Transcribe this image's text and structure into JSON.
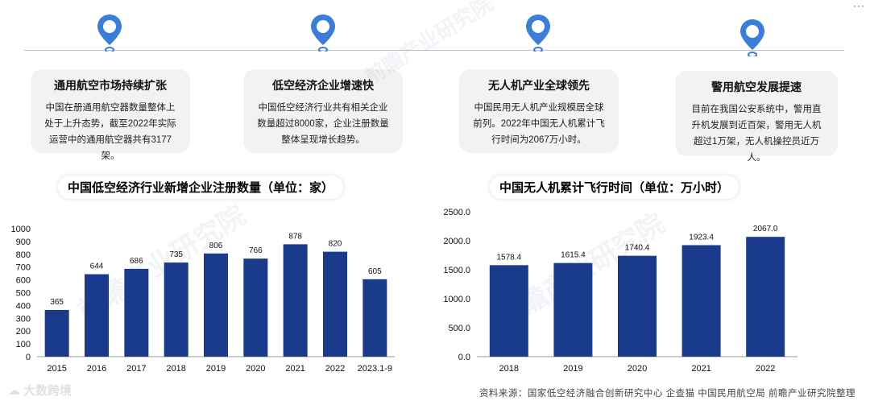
{
  "cards": [
    {
      "title": "通用航空市场持续扩张",
      "lines": [
        "中国在册通用航空器数量整体上",
        "处于上升态势，截至2022年实际",
        "运营中的通用航空器共有3177架。"
      ]
    },
    {
      "title": "低空经济企业增速快",
      "lines": [
        "中国低空经济行业共有相关企业",
        "数量超过8000家，企业注册数量",
        "整体呈现增长趋势。"
      ]
    },
    {
      "title": "无人机产业全球领先",
      "lines": [
        "中国民用无人机产业规模居全球",
        "前列。2022年中国无人机累计飞",
        "行时间为2067万小时。"
      ]
    },
    {
      "title": "警用航空发展提速",
      "lines": [
        "目前在我国公安系统中，警用直",
        "升机发展到近百架，警用无人机",
        "超过1万架，无人机操控员近万人。"
      ]
    }
  ],
  "colors": {
    "bar": "#1a3a8c",
    "pin": "#3a7ddb",
    "pin_dark": "#2f64b8"
  },
  "chart_data": [
    {
      "type": "bar",
      "title": "中国低空经济行业新增企业注册数量（单位：家）",
      "categories": [
        "2015",
        "2016",
        "2017",
        "2018",
        "2019",
        "2020",
        "2021",
        "2022",
        "2023.1-9"
      ],
      "values": [
        365,
        644,
        686,
        735,
        806,
        766,
        878,
        820,
        605
      ],
      "value_labels": [
        "365",
        "644",
        "686",
        "735",
        "806",
        "766",
        "878",
        "820",
        "605"
      ],
      "ylim": [
        0,
        1000
      ],
      "yticks": [
        "0",
        "100",
        "200",
        "300",
        "400",
        "500",
        "600",
        "700",
        "800",
        "900",
        "1000"
      ],
      "grid": false
    },
    {
      "type": "bar",
      "title": "中国无人机累计飞行时间（单位：万小时）",
      "categories": [
        "2018",
        "2019",
        "2020",
        "2021",
        "2022"
      ],
      "values": [
        1578.4,
        1615.4,
        1740.4,
        1923.4,
        2067.0
      ],
      "value_labels": [
        "1578.4",
        "1615.4",
        "1740.4",
        "1923.4",
        "2067.0"
      ],
      "ylim": [
        0,
        2500
      ],
      "yticks": [
        "0.0",
        "500.0",
        "1000.0",
        "1500.0",
        "2000.0",
        "2500.0"
      ],
      "grid": false
    }
  ],
  "source": "资料来源：国家低空经济融合创新研究中心 企查猫 中国民用航空局 前瞻产业研究院整理",
  "brand": "大数跨境",
  "watermark": "前瞻产业研究院",
  "menu_dots": "···"
}
